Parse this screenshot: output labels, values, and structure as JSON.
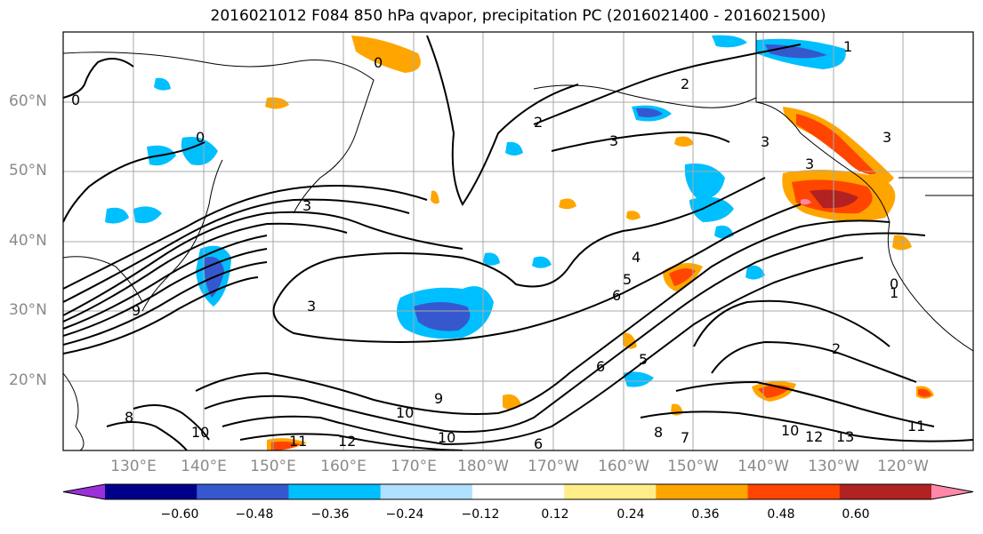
{
  "title": "2016021012 F084 850 hPa qvapor, precipitation PC (2016021400 - 2016021500)",
  "lat_labels": [
    "60°N",
    "50°N",
    "40°N",
    "30°N",
    "20°N"
  ],
  "lon_labels": [
    "130°E",
    "140°E",
    "150°E",
    "160°E",
    "170°E",
    "180°W",
    "170°W",
    "160°W",
    "150°W",
    "140°W",
    "130°W",
    "120°W"
  ],
  "colorbar": {
    "colors": [
      "#9b30d9",
      "#00008b",
      "#3558cf",
      "#00bfff",
      "#b0e0ff",
      "#ffffff",
      "#ffee88",
      "#ffa500",
      "#ff4500",
      "#b22222",
      "#ff88aa"
    ],
    "tick_labels": [
      "−0.60",
      "−0.48",
      "−0.36",
      "−0.24",
      "−0.12",
      "0.12",
      "0.24",
      "0.36",
      "0.48",
      "0.60"
    ]
  },
  "contour_labels": [
    "0",
    "0",
    "0",
    "0",
    "1",
    "1",
    "2",
    "2",
    "2",
    "3",
    "3",
    "3",
    "3",
    "3",
    "3",
    "4",
    "5",
    "5",
    "6",
    "6",
    "6",
    "7",
    "8",
    "8",
    "9",
    "9",
    "10",
    "10",
    "10",
    "10",
    "11",
    "11",
    "12",
    "12",
    "13"
  ]
}
